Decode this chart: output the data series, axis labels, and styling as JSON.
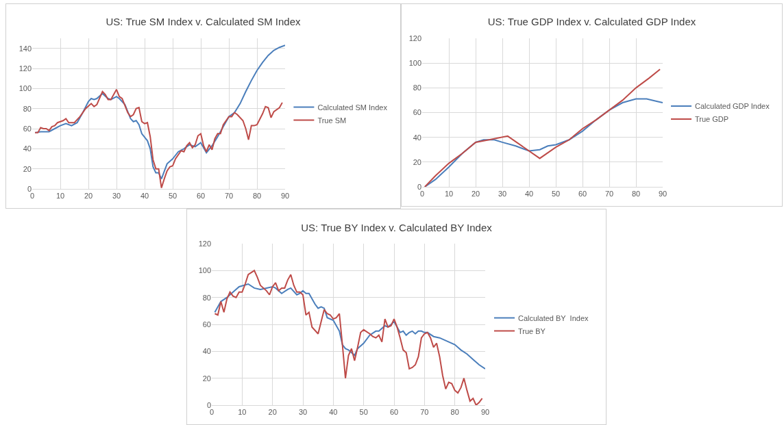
{
  "chart_data": [
    {
      "type": "line",
      "title": "US: True SM Index v. Calculated SM Index",
      "xlim": [
        0,
        90
      ],
      "xticks": [
        0,
        10,
        20,
        30,
        40,
        50,
        60,
        70,
        80,
        90
      ],
      "ylim": [
        0,
        150
      ],
      "yticks": [
        0,
        20,
        40,
        60,
        80,
        100,
        120,
        140
      ],
      "grid": true,
      "legend": "right",
      "marker": "none",
      "line_style": "solid",
      "series": [
        {
          "name": "Calculated SM Index",
          "color": "#4a7ebb",
          "x": [
            1,
            3,
            5,
            6,
            8,
            10,
            12,
            14,
            16,
            18,
            20,
            21,
            22,
            23,
            25,
            27,
            28,
            30,
            31,
            33,
            35,
            36,
            37,
            38,
            39,
            41,
            42,
            43,
            44,
            45,
            46,
            48,
            50,
            52,
            54,
            56,
            58,
            60,
            62,
            64,
            66,
            68,
            70,
            72,
            74,
            76,
            78,
            80,
            82,
            84,
            86,
            88,
            90
          ],
          "values": [
            56,
            57,
            57,
            57,
            60,
            63,
            65,
            63,
            66,
            76,
            87,
            90,
            89,
            90,
            95,
            90,
            89,
            92,
            90,
            84,
            70,
            67,
            68,
            64,
            55,
            48,
            40,
            22,
            16,
            16,
            10,
            25,
            30,
            37,
            40,
            44,
            42,
            46,
            36,
            43,
            52,
            62,
            72,
            76,
            85,
            97,
            108,
            118,
            126,
            133,
            138,
            141,
            143
          ]
        },
        {
          "name": "True SM",
          "color": "#be4b48",
          "x": [
            1,
            2,
            3,
            4,
            5,
            6,
            7,
            8,
            9,
            11,
            12,
            13,
            15,
            17,
            19,
            21,
            22,
            23,
            25,
            26,
            27,
            28,
            30,
            31,
            32,
            34,
            35,
            36,
            37,
            38,
            39,
            40,
            41,
            42,
            43,
            44,
            45,
            46,
            47,
            48,
            49,
            50,
            51,
            53,
            54,
            55,
            56,
            57,
            58,
            59,
            60,
            61,
            62,
            63,
            64,
            65,
            66,
            67,
            68,
            70,
            71,
            72,
            73,
            75,
            76,
            77,
            78,
            79,
            80,
            82,
            83,
            84,
            85,
            86,
            88,
            89
          ],
          "values": [
            56,
            56,
            61,
            60,
            60,
            58,
            62,
            63,
            66,
            68,
            70,
            66,
            66,
            72,
            80,
            85,
            82,
            84,
            97,
            94,
            89,
            89,
            99,
            92,
            90,
            76,
            72,
            74,
            80,
            81,
            67,
            65,
            66,
            52,
            29,
            20,
            20,
            1,
            10,
            18,
            22,
            23,
            30,
            38,
            37,
            43,
            46,
            41,
            44,
            53,
            55,
            43,
            37,
            44,
            39,
            50,
            55,
            55,
            64,
            72,
            72,
            76,
            74,
            68,
            60,
            49,
            63,
            63,
            64,
            75,
            82,
            81,
            71,
            77,
            81,
            86
          ]
        }
      ]
    },
    {
      "type": "line",
      "title": "US: True GDP Index v. Calculated GDP Index",
      "xlim": [
        0,
        90
      ],
      "xticks": [
        0,
        10,
        20,
        30,
        40,
        50,
        60,
        70,
        80,
        90
      ],
      "ylim": [
        0,
        120
      ],
      "yticks": [
        0,
        20,
        40,
        60,
        80,
        100,
        120
      ],
      "grid": true,
      "legend": "right",
      "marker": "none",
      "line_style": "solid",
      "series": [
        {
          "name": "Calculated GDP Index",
          "color": "#4a7ebb",
          "x": [
            1,
            5,
            10,
            15,
            20,
            23,
            27,
            30,
            35,
            40,
            44,
            47,
            50,
            55,
            60,
            65,
            70,
            75,
            80,
            84,
            88,
            90
          ],
          "values": [
            0,
            6,
            16,
            27,
            36,
            38,
            38,
            36,
            33,
            29,
            30,
            33,
            34,
            38,
            45,
            54,
            62,
            68,
            71,
            71,
            69,
            68
          ]
        },
        {
          "name": "True GDP",
          "color": "#be4b48",
          "x": [
            1,
            5,
            10,
            15,
            20,
            25,
            32,
            44,
            50,
            55,
            60,
            65,
            70,
            75,
            80,
            85,
            89
          ],
          "values": [
            0,
            9,
            19,
            27,
            36,
            38,
            41,
            23,
            32,
            38,
            47,
            54,
            62,
            70,
            80,
            88,
            95
          ]
        }
      ]
    },
    {
      "type": "line",
      "title": "US: True BY Index v. Calculated BY Index",
      "xlim": [
        0,
        90
      ],
      "xticks": [
        0,
        10,
        20,
        30,
        40,
        50,
        60,
        70,
        80,
        90
      ],
      "ylim": [
        0,
        120
      ],
      "yticks": [
        0,
        20,
        40,
        60,
        80,
        100,
        120
      ],
      "grid": true,
      "legend": "right",
      "marker": "none",
      "line_style": "solid",
      "series": [
        {
          "name": "Calculated BY  Index",
          "color": "#4a7ebb",
          "x": [
            1,
            3,
            5,
            7,
            9,
            12,
            14,
            16,
            18,
            20,
            21,
            23,
            25,
            26,
            28,
            29,
            30,
            31,
            32,
            34,
            35,
            36,
            37,
            38,
            40,
            42,
            43,
            44,
            45,
            46,
            47,
            48,
            50,
            52,
            54,
            55,
            57,
            58,
            60,
            62,
            63,
            64,
            65,
            66,
            67,
            68,
            69,
            70,
            71,
            73,
            75,
            78,
            80,
            82,
            84,
            86,
            88,
            90
          ],
          "values": [
            69,
            77,
            80,
            84,
            88,
            90,
            87,
            86,
            87,
            88,
            87,
            83,
            86,
            87,
            82,
            83,
            85,
            83,
            83,
            75,
            72,
            73,
            72,
            65,
            63,
            55,
            45,
            42,
            41,
            39,
            37,
            42,
            46,
            52,
            55,
            55,
            59,
            58,
            62,
            54,
            55,
            52,
            54,
            55,
            53,
            55,
            55,
            54,
            54,
            51,
            50,
            47,
            45,
            41,
            38,
            34,
            30,
            27
          ]
        },
        {
          "name": "True BY",
          "color": "#be4b48",
          "x": [
            1,
            2,
            3,
            4,
            5,
            6,
            7,
            8,
            9,
            10,
            11,
            12,
            14,
            15,
            16,
            18,
            19,
            20,
            21,
            22,
            23,
            24,
            25,
            26,
            27,
            28,
            29,
            30,
            31,
            32,
            33,
            35,
            36,
            37,
            38,
            39,
            40,
            41,
            42,
            43,
            44,
            45,
            46,
            47,
            48,
            49,
            50,
            52,
            53,
            54,
            55,
            56,
            57,
            58,
            59,
            60,
            61,
            62,
            63,
            64,
            65,
            66,
            67,
            68,
            69,
            70,
            71,
            72,
            73,
            74,
            75,
            76,
            77,
            78,
            79,
            80,
            81,
            82,
            83,
            84,
            85,
            86,
            87,
            88,
            89
          ],
          "values": [
            68,
            67,
            77,
            69,
            79,
            84,
            81,
            80,
            84,
            84,
            90,
            97,
            100,
            95,
            89,
            85,
            82,
            88,
            91,
            85,
            87,
            87,
            93,
            97,
            89,
            84,
            84,
            82,
            67,
            69,
            58,
            53,
            62,
            71,
            68,
            67,
            64,
            65,
            68,
            45,
            20,
            37,
            42,
            33,
            43,
            54,
            56,
            53,
            51,
            50,
            52,
            47,
            64,
            58,
            59,
            64,
            58,
            50,
            41,
            39,
            27,
            28,
            30,
            36,
            50,
            53,
            54,
            50,
            43,
            46,
            36,
            22,
            12,
            17,
            16,
            11,
            9,
            13,
            20,
            11,
            3,
            5,
            0,
            2,
            5
          ]
        }
      ]
    }
  ]
}
